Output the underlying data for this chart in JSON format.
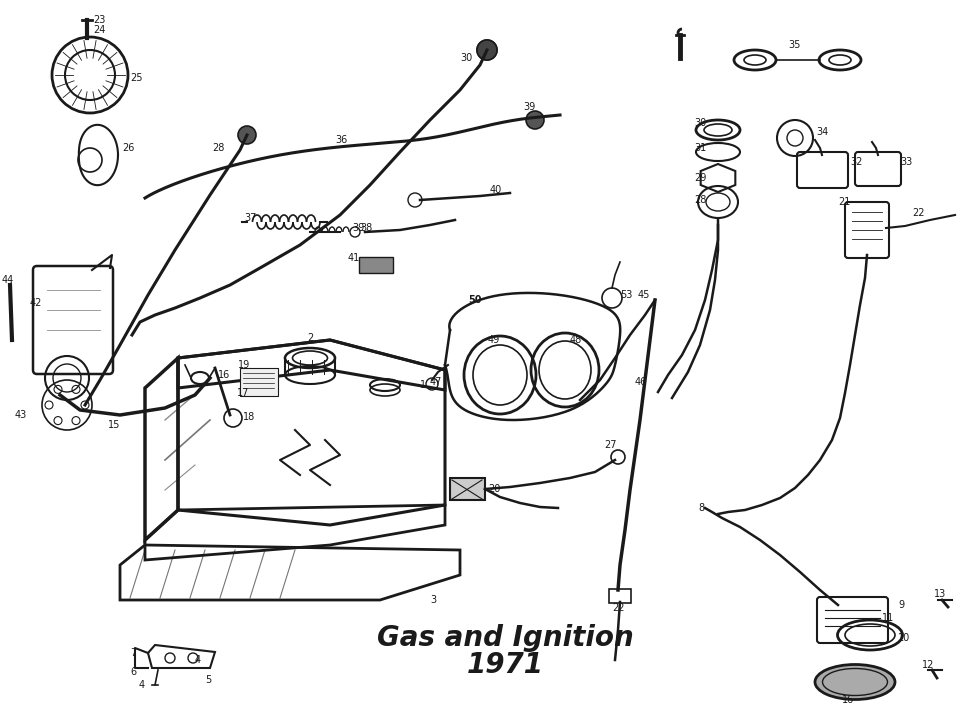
{
  "title_line1": "Gas and Ignition",
  "title_line2": "1971",
  "bg_color": "#ffffff",
  "line_color": "#1a1a1a",
  "fig_width": 9.6,
  "fig_height": 7.25,
  "title_fontsize": 20,
  "label_fontsize": 7
}
